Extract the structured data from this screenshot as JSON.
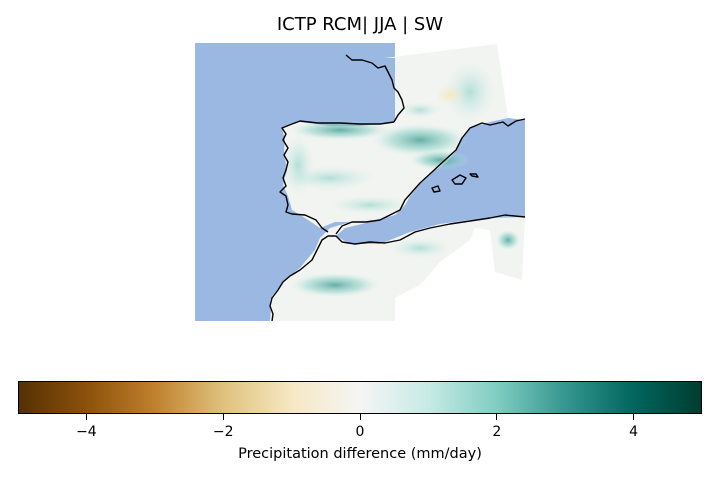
{
  "title": "ICTP RCM| JJA | SW",
  "colorbar": {
    "label": "Precipitation difference (mm/day)",
    "range": [
      -5,
      5
    ],
    "ticks": [
      -4,
      -2,
      0,
      2,
      4
    ],
    "tick_labels": [
      "−4",
      "−2",
      "0",
      "2",
      "4"
    ],
    "colormap": "BrBG",
    "stops": [
      "#543005",
      "#8c510a",
      "#bf812d",
      "#dfc27d",
      "#f6e8c3",
      "#f5f5f5",
      "#c7eae5",
      "#80cdc1",
      "#35978f",
      "#01665e",
      "#003c30"
    ]
  },
  "map": {
    "region": "Iberian Peninsula, southwestern France and northwestern Africa",
    "ocean_color": "#9bb8e2",
    "coastline_color": "#000000"
  }
}
